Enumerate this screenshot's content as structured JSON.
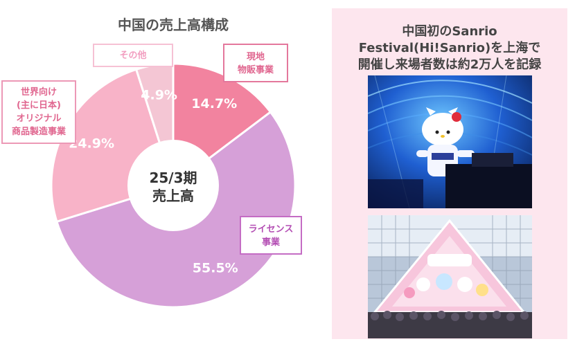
{
  "chart_data": {
    "type": "pie",
    "title": "中国の売上高構成",
    "center_label": [
      "25/3期",
      "売上高"
    ],
    "slices": [
      {
        "label": "現地物販事業",
        "value": 14.7,
        "value_label": "14.7%",
        "color": "#f2839f"
      },
      {
        "label": "ライセンス事業",
        "value": 55.5,
        "value_label": "55.5%",
        "color": "#d6a0d8"
      },
      {
        "label": "世界向け(主に日本)オリジナル商品製造事業",
        "value": 24.9,
        "value_label": "24.9%",
        "color": "#f8b3c8"
      },
      {
        "label": "その他",
        "value": 4.9,
        "value_label": "4.9%",
        "color": "#f4c6d4"
      }
    ],
    "callouts": {
      "genchi": [
        "現地",
        "物販事業"
      ],
      "license": [
        "ライセンス",
        "事業"
      ],
      "sekai": [
        "世界向け",
        "(主に日本)",
        "オリジナル",
        "商品製造事業"
      ],
      "sonota": [
        "その他"
      ]
    }
  },
  "right_panel": {
    "title_lines": [
      "中国初のSanrio",
      "Festival(Hi!Sanrio)を上海で",
      "開催し来場者数は約2万人を記録"
    ]
  }
}
